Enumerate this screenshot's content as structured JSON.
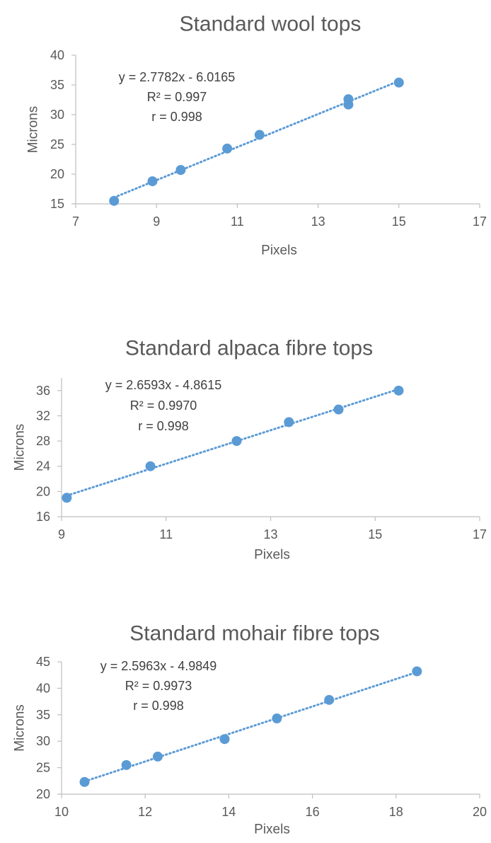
{
  "chart_data": [
    {
      "type": "scatter",
      "title": "Standard wool tops",
      "xlabel": "Pixels",
      "ylabel": "Microns",
      "xlim": [
        7,
        17
      ],
      "ylim": [
        15,
        40
      ],
      "xticks": [
        7,
        9,
        11,
        13,
        15,
        17
      ],
      "yticks": [
        15,
        20,
        25,
        30,
        35,
        40
      ],
      "grid": false,
      "legend": "none",
      "marker_color": "#5b9bd5",
      "trendline": {
        "slope": 2.7782,
        "intercept": -6.0165,
        "style": "dotted"
      },
      "annotations": [
        "y = 2.7782x - 6.0165",
        "R² = 0.997",
        "r = 0.998"
      ],
      "series": [
        {
          "x": [
            7.95,
            8.9,
            9.6,
            10.75,
            11.55,
            13.75,
            13.75,
            15.0
          ],
          "y": [
            15.5,
            18.8,
            20.7,
            24.3,
            26.6,
            32.6,
            31.7,
            35.4
          ]
        }
      ]
    },
    {
      "type": "scatter",
      "title": "Standard alpaca fibre tops",
      "xlabel": "Pixels",
      "ylabel": "Microns",
      "xlim": [
        9,
        17
      ],
      "ylim": [
        16,
        38
      ],
      "xticks": [
        9,
        11,
        13,
        15,
        17
      ],
      "yticks": [
        16,
        20,
        24,
        28,
        32,
        36
      ],
      "grid": false,
      "legend": "none",
      "marker_color": "#5b9bd5",
      "trendline": {
        "slope": 2.6593,
        "intercept": -4.8615,
        "style": "dotted"
      },
      "annotations": [
        "y = 2.6593x - 4.8615",
        "R² = 0.9970",
        "r = 0.998"
      ],
      "series": [
        {
          "x": [
            9.1,
            10.7,
            12.35,
            13.35,
            14.3,
            15.45
          ],
          "y": [
            19.0,
            24.0,
            28.0,
            31.0,
            33.0,
            36.0
          ]
        }
      ]
    },
    {
      "type": "scatter",
      "title": "Standard mohair fibre tops",
      "xlabel": "Pixels",
      "ylabel": "Microns",
      "xlim": [
        10,
        20
      ],
      "ylim": [
        20,
        45
      ],
      "xticks": [
        10,
        12,
        14,
        16,
        18,
        20
      ],
      "yticks": [
        20,
        25,
        30,
        35,
        40,
        45
      ],
      "grid": false,
      "legend": "none",
      "marker_color": "#5b9bd5",
      "trendline": {
        "slope": 2.5963,
        "intercept": -4.9849,
        "style": "dotted"
      },
      "annotations": [
        "y = 2.5963x - 4.9849",
        "R² = 0.9973",
        "r = 0.998"
      ],
      "series": [
        {
          "x": [
            10.55,
            11.55,
            12.3,
            13.9,
            15.15,
            16.4,
            18.5
          ],
          "y": [
            22.3,
            25.5,
            27.1,
            30.4,
            34.3,
            37.8,
            43.2
          ]
        }
      ]
    }
  ]
}
